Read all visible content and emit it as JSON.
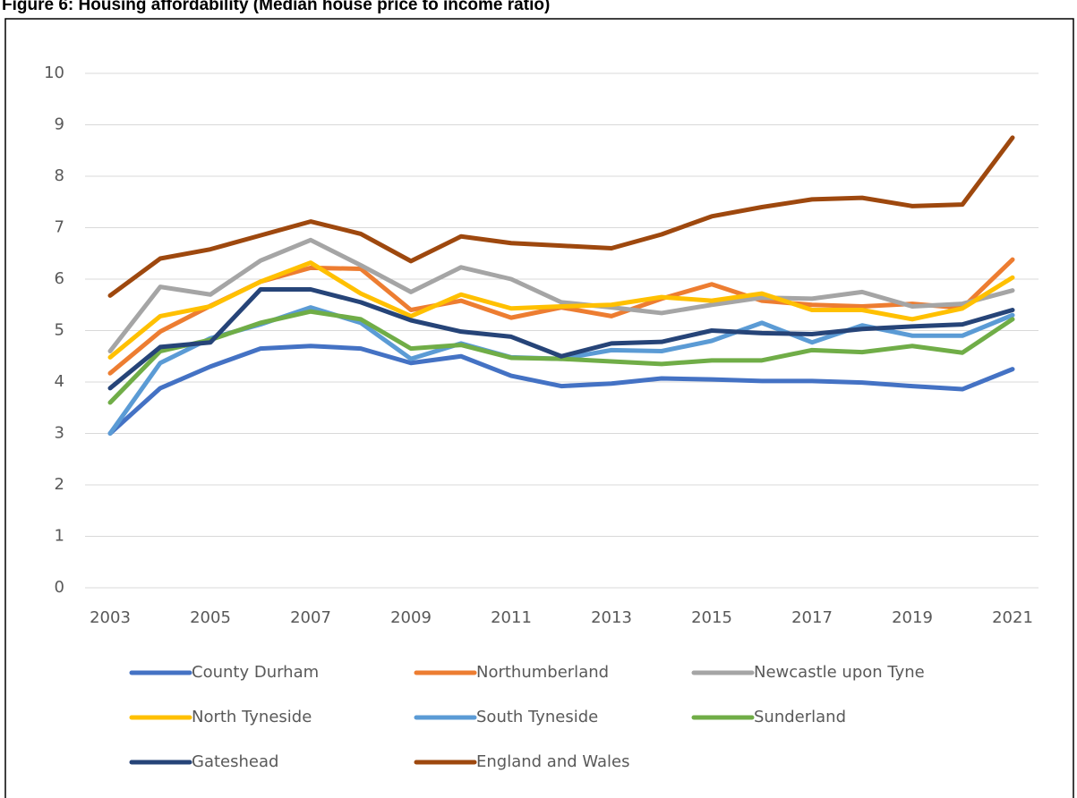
{
  "chart_data": {
    "type": "line",
    "title": "Figure 6: Housing affordability (Median house price to income ratio)",
    "x": [
      2003,
      2004,
      2005,
      2006,
      2007,
      2008,
      2009,
      2010,
      2011,
      2012,
      2013,
      2014,
      2015,
      2016,
      2017,
      2018,
      2019,
      2020,
      2021
    ],
    "xlim": [
      2003,
      2021
    ],
    "xticks": [
      2003,
      2005,
      2007,
      2009,
      2011,
      2013,
      2015,
      2017,
      2019,
      2021
    ],
    "ylim": [
      0,
      10
    ],
    "yticks": [
      0,
      1,
      2,
      3,
      4,
      5,
      6,
      7,
      8,
      9,
      10
    ],
    "grid": true,
    "legend": "bottom",
    "series": [
      {
        "name": "County Durham",
        "color": "#4472c4",
        "values": [
          3.0,
          3.88,
          4.3,
          4.65,
          4.7,
          4.65,
          4.37,
          4.5,
          4.12,
          3.92,
          3.97,
          4.07,
          4.05,
          4.02,
          4.02,
          3.99,
          3.92,
          3.86,
          4.25
        ]
      },
      {
        "name": "Northumberland",
        "color": "#ed7d31",
        "values": [
          4.17,
          4.98,
          5.48,
          5.95,
          6.22,
          6.2,
          5.4,
          5.58,
          5.25,
          5.45,
          5.28,
          5.62,
          5.9,
          5.58,
          5.5,
          5.47,
          5.52,
          5.44,
          6.38
        ]
      },
      {
        "name": "Newcastle upon Tyne",
        "color": "#a5a5a5",
        "values": [
          4.6,
          5.85,
          5.7,
          6.36,
          6.76,
          6.27,
          5.75,
          6.23,
          6.0,
          5.55,
          5.45,
          5.34,
          5.5,
          5.64,
          5.62,
          5.75,
          5.47,
          5.52,
          5.78
        ]
      },
      {
        "name": "North Tyneside",
        "color": "#ffc000",
        "values": [
          4.48,
          5.28,
          5.47,
          5.95,
          6.32,
          5.72,
          5.28,
          5.7,
          5.43,
          5.47,
          5.5,
          5.65,
          5.58,
          5.72,
          5.4,
          5.4,
          5.22,
          5.43,
          6.03
        ]
      },
      {
        "name": "South Tyneside",
        "color": "#5b9bd5",
        "values": [
          3.0,
          4.37,
          4.85,
          5.12,
          5.45,
          5.15,
          4.45,
          4.75,
          4.48,
          4.45,
          4.62,
          4.6,
          4.8,
          5.15,
          4.77,
          5.1,
          4.9,
          4.9,
          5.3
        ]
      },
      {
        "name": "Sunderland",
        "color": "#70ad47",
        "values": [
          3.6,
          4.6,
          4.82,
          5.15,
          5.37,
          5.22,
          4.65,
          4.72,
          4.47,
          4.45,
          4.4,
          4.35,
          4.42,
          4.42,
          4.62,
          4.58,
          4.7,
          4.57,
          5.22
        ]
      },
      {
        "name": "Gateshead",
        "color": "#264478",
        "values": [
          3.88,
          4.68,
          4.77,
          5.8,
          5.8,
          5.55,
          5.2,
          4.98,
          4.88,
          4.5,
          4.75,
          4.78,
          5.0,
          4.95,
          4.93,
          5.03,
          5.08,
          5.12,
          5.4
        ]
      },
      {
        "name": "England and Wales",
        "color": "#9e480e",
        "values": [
          5.68,
          6.4,
          6.58,
          6.85,
          7.12,
          6.88,
          6.35,
          6.83,
          6.7,
          6.65,
          6.6,
          6.87,
          7.22,
          7.4,
          7.55,
          7.58,
          7.42,
          7.45,
          8.75
        ]
      }
    ]
  }
}
